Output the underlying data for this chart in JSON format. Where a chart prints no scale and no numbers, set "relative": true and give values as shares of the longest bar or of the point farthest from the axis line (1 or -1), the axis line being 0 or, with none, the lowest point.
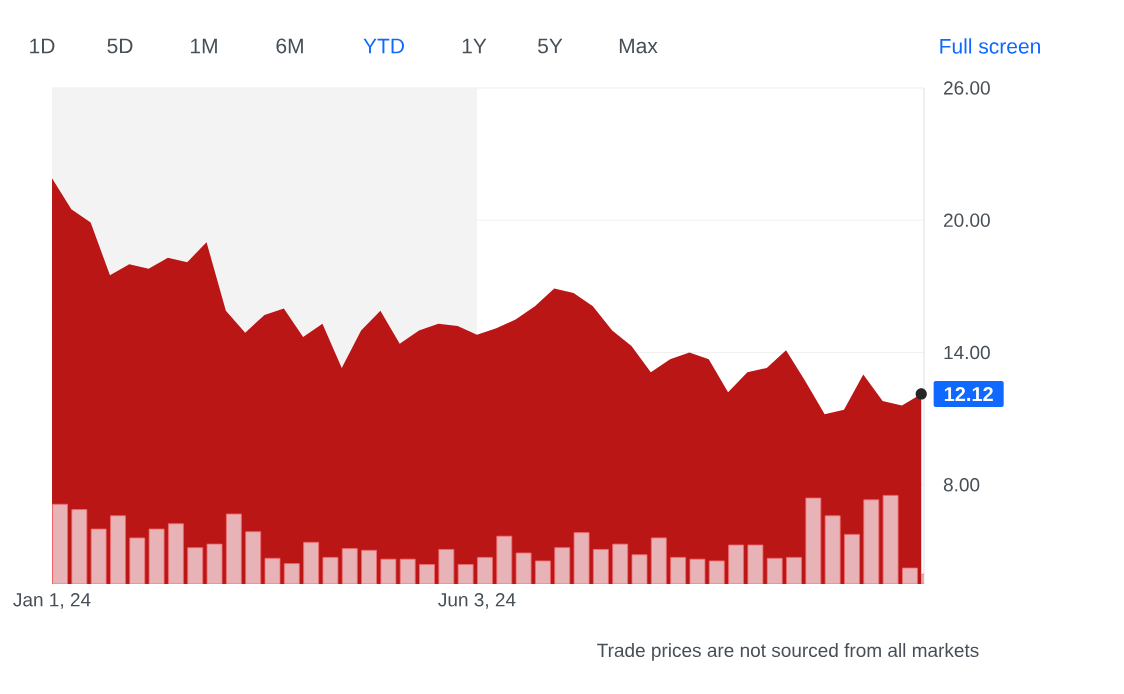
{
  "chart_data": [
    {
      "type": "area",
      "color": "#bb1616",
      "x": [
        "2024-01-01",
        "2024-01-08",
        "2024-01-15",
        "2024-01-22",
        "2024-01-29",
        "2024-02-05",
        "2024-02-12",
        "2024-02-19",
        "2024-02-26",
        "2024-03-04",
        "2024-03-11",
        "2024-03-18",
        "2024-03-25",
        "2024-04-01",
        "2024-04-08",
        "2024-04-15",
        "2024-04-22",
        "2024-04-29",
        "2024-05-06",
        "2024-05-13",
        "2024-05-20",
        "2024-05-27",
        "2024-06-03",
        "2024-06-10",
        "2024-06-17",
        "2024-06-24",
        "2024-07-01",
        "2024-07-08",
        "2024-07-15",
        "2024-07-22",
        "2024-07-29",
        "2024-08-05",
        "2024-08-12",
        "2024-08-19",
        "2024-08-26",
        "2024-09-02",
        "2024-09-09",
        "2024-09-16",
        "2024-09-23",
        "2024-09-30",
        "2024-10-07",
        "2024-10-14",
        "2024-10-21",
        "2024-10-28",
        "2024-11-04",
        "2024-11-11"
      ],
      "values": [
        21.9,
        20.5,
        19.9,
        17.5,
        18.0,
        17.8,
        18.3,
        18.1,
        19.0,
        15.9,
        14.9,
        15.7,
        16.0,
        14.7,
        15.3,
        13.3,
        15.0,
        15.9,
        14.4,
        15.0,
        15.3,
        15.2,
        14.8,
        15.1,
        15.5,
        16.1,
        16.9,
        16.7,
        16.1,
        15.0,
        14.3,
        13.1,
        13.7,
        14.0,
        13.7,
        12.2,
        13.1,
        13.3,
        14.1,
        12.7,
        11.2,
        11.4,
        13.0,
        11.8,
        11.6,
        12.12
      ],
      "xlim": [
        "2024-01-01",
        "2024-11-12"
      ],
      "xticks": [
        {
          "value": "2024-01-01",
          "label": "Jan 1, 24"
        },
        {
          "value": "2024-06-03",
          "label": "Jun 3, 24"
        }
      ],
      "ylim": [
        3.5,
        26
      ],
      "yticks": [
        {
          "value": 8,
          "label": "8.00"
        },
        {
          "value": 14,
          "label": "14.00"
        },
        {
          "value": 20,
          "label": "20.00"
        },
        {
          "value": 26,
          "label": "26.00"
        }
      ],
      "grid": "y",
      "bands": [
        {
          "axis": "x",
          "from": "2024-01-01",
          "to": "2024-06-03",
          "color": "#f3f3f3"
        }
      ],
      "annotations": [
        "1D",
        "5D",
        "1M",
        "6M",
        "YTD",
        "1Y",
        "5Y",
        "Max",
        "Full screen",
        {
          "text": "12.12",
          "x": "2024-11-11",
          "y": 12.12
        },
        "Trade prices are not sourced from all markets"
      ]
    },
    {
      "type": "bar",
      "relative": true,
      "color": "#e8b3b7",
      "tick_labels": false,
      "categories": [
        null,
        null,
        null,
        null,
        null,
        null,
        null,
        null,
        null,
        null,
        null,
        null,
        null,
        null,
        null,
        null,
        null,
        null,
        null,
        null,
        null,
        null,
        null,
        null,
        null,
        null,
        null,
        null,
        null,
        null,
        null,
        null,
        null,
        null,
        null,
        null,
        null,
        null,
        null,
        null,
        null,
        null,
        null,
        null,
        null,
        null
      ],
      "values": [
        0.9,
        0.84,
        0.62,
        0.77,
        0.52,
        0.62,
        0.68,
        0.41,
        0.45,
        0.79,
        0.59,
        0.29,
        0.23,
        0.47,
        0.3,
        0.4,
        0.38,
        0.28,
        0.28,
        0.22,
        0.39,
        0.22,
        0.3,
        0.54,
        0.35,
        0.26,
        0.41,
        0.58,
        0.39,
        0.45,
        0.33,
        0.52,
        0.3,
        0.28,
        0.26,
        0.44,
        0.44,
        0.29,
        0.3,
        0.97,
        0.77,
        0.56,
        0.95,
        1.0,
        0.18,
        0.11
      ]
    }
  ]
}
